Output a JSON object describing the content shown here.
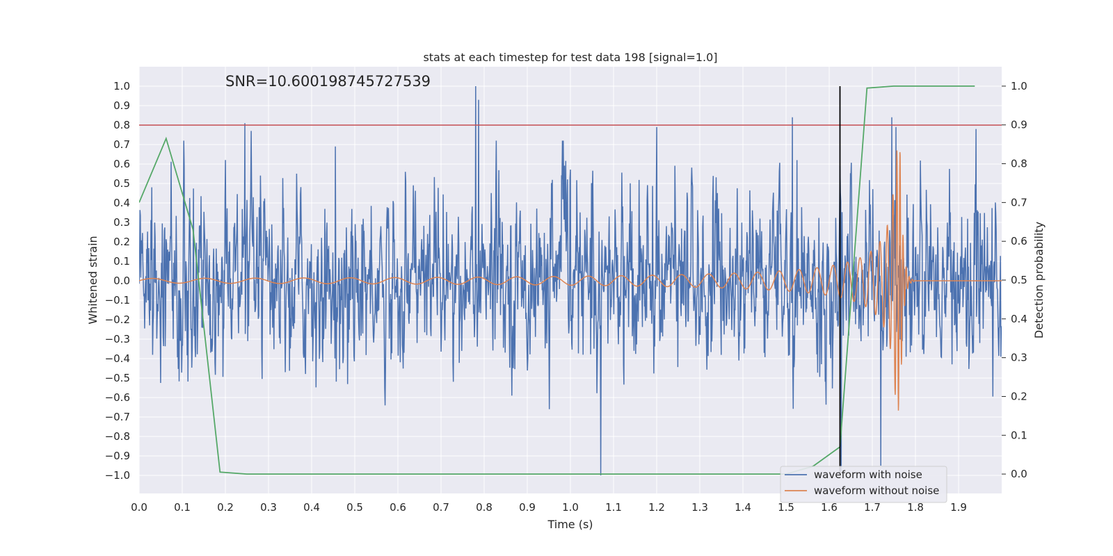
{
  "chart_data": {
    "type": "line",
    "title": "stats at each timestep for test data 198 [signal=1.0]",
    "annotation": "SNR=10.600198745727539",
    "xlabel": "Time (s)",
    "ylabel_left": "Whitened strain",
    "ylabel_right": "Detection probability",
    "xlim": [
      0.0,
      2.0
    ],
    "ylim_left": [
      -1.1,
      1.1
    ],
    "ylim_right": [
      -0.05,
      1.05
    ],
    "x_ticks": [
      "0.0",
      "0.1",
      "0.2",
      "0.3",
      "0.4",
      "0.5",
      "0.6",
      "0.7",
      "0.8",
      "0.9",
      "1.0",
      "1.1",
      "1.2",
      "1.3",
      "1.4",
      "1.5",
      "1.6",
      "1.7",
      "1.8",
      "1.9"
    ],
    "y_left_ticks": [
      "1.0",
      "0.9",
      "0.8",
      "0.7",
      "0.6",
      "0.5",
      "0.4",
      "0.3",
      "0.2",
      "0.1",
      "0.0",
      "−0.1",
      "−0.2",
      "−0.3",
      "−0.4",
      "−0.5",
      "−0.6",
      "−0.7",
      "−0.8",
      "−0.9",
      "−1.0"
    ],
    "y_right_ticks": [
      "1.0",
      "0.9",
      "0.8",
      "0.7",
      "0.6",
      "0.5",
      "0.4",
      "0.3",
      "0.2",
      "0.1",
      "0.0"
    ],
    "grid": true,
    "legend_position": "bottom-right",
    "threshold": {
      "y": 0.8,
      "color": "#c44e52"
    },
    "marker_line": {
      "x": 1.625,
      "ymin": -1.0,
      "ymax": 1.0,
      "color": "#000000"
    },
    "series": [
      {
        "name": "waveform with noise",
        "color": "#4c72b0",
        "axis": "left",
        "style": "noise",
        "spikes": [
          [
            0.245,
            0.81
          ],
          [
            0.26,
            0.77
          ],
          [
            0.455,
            0.69
          ],
          [
            0.78,
            1.0
          ],
          [
            0.787,
            0.93
          ],
          [
            1.07,
            -1.0
          ],
          [
            1.2,
            0.79
          ],
          [
            1.515,
            0.84
          ],
          [
            1.525,
            0.62
          ],
          [
            1.628,
            -0.98
          ],
          [
            1.72,
            -0.95
          ],
          [
            1.745,
            0.84
          ],
          [
            1.755,
            0.79
          ],
          [
            1.94,
            0.78
          ]
        ]
      },
      {
        "name": "waveform without noise",
        "color": "#dd8452",
        "axis": "left",
        "style": "chirp",
        "t_merge": 1.765,
        "peak": 0.67
      },
      {
        "name": "",
        "color": "#55a868",
        "axis": "right",
        "style": "line",
        "x": [
          0.0,
          0.0625,
          0.125,
          0.1875,
          0.25,
          1.5,
          1.5625,
          1.625,
          1.6875,
          1.75,
          1.9375
        ],
        "y": [
          0.7,
          0.865,
          0.63,
          0.005,
          0.0,
          0.0,
          0.02,
          0.07,
          0.995,
          1.0,
          1.0
        ]
      }
    ]
  }
}
